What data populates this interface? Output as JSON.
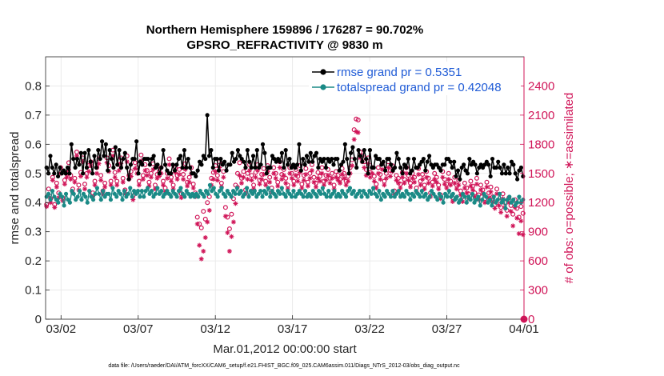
{
  "chart_data": {
    "type": "line",
    "title": "Northern Hemisphere 159896 / 176287 = 90.702%",
    "subtitle": "GPSRO_REFRACTIVITY @ 9830 m",
    "xlabel": "Mar.01,2012 00:00:00 start",
    "ylabel": "rmse and totalspread",
    "ylabel_right": "# of obs: o=possible; ∗=assimilated",
    "footnote": "data file: /Users/raeder/DAI/ATM_forcXX/CAM6_setup/f.e21.FHIST_BGC.f09_025.CAM6assim.011/Diags_NTrS_2012-03/obs_diag_output.nc",
    "xlim": [
      0.5,
      31.5
    ],
    "ylim": [
      0,
      0.9
    ],
    "ylim_right": [
      0,
      2700
    ],
    "x_ticks": [
      1.5,
      6.5,
      11.5,
      16.5,
      21.5,
      26.5,
      31.5
    ],
    "x_tick_labels": [
      "03/02",
      "03/07",
      "03/12",
      "03/17",
      "03/22",
      "03/27",
      "04/01"
    ],
    "y_ticks": [
      0,
      0.1,
      0.2,
      0.3,
      0.4,
      0.5,
      0.6,
      0.7,
      0.8
    ],
    "y_tick_labels": [
      "0",
      "0.1",
      "0.2",
      "0.3",
      "0.4",
      "0.5",
      "0.6",
      "0.7",
      "0.8"
    ],
    "y_ticks_right": [
      0,
      300,
      600,
      900,
      1200,
      1500,
      1800,
      2100,
      2400
    ],
    "y_tick_labels_right": [
      "0",
      "300",
      "600",
      "900",
      "1200",
      "1500",
      "1800",
      "2100",
      "2400"
    ],
    "grid": true,
    "legend_position": "top-right",
    "series": [
      {
        "name": "rmse grand pr = 0.5351",
        "color": "#000000",
        "axis": "left",
        "values": [
          0.52,
          0.5,
          0.56,
          0.52,
          0.5,
          0.53,
          0.49,
          0.52,
          0.5,
          0.51,
          0.5,
          0.52,
          0.5,
          0.6,
          0.55,
          0.52,
          0.55,
          0.53,
          0.57,
          0.5,
          0.57,
          0.52,
          0.58,
          0.54,
          0.5,
          0.56,
          0.52,
          0.58,
          0.55,
          0.61,
          0.56,
          0.6,
          0.51,
          0.58,
          0.55,
          0.52,
          0.59,
          0.53,
          0.58,
          0.52,
          0.55,
          0.57,
          0.52,
          0.48,
          0.53,
          0.55,
          0.55,
          0.61,
          0.5,
          0.54,
          0.53,
          0.55,
          0.55,
          0.55,
          0.53,
          0.55,
          0.56,
          0.52,
          0.53,
          0.5,
          0.52,
          0.58,
          0.53,
          0.51,
          0.5,
          0.5,
          0.53,
          0.51,
          0.53,
          0.55,
          0.56,
          0.52,
          0.58,
          0.52,
          0.55,
          0.52,
          0.5,
          0.5,
          0.49,
          0.51,
          0.54,
          0.53,
          0.56,
          0.55,
          0.7,
          0.56,
          0.58,
          0.52,
          0.55,
          0.55,
          0.51,
          0.55,
          0.53,
          0.54,
          0.51,
          0.53,
          0.53,
          0.57,
          0.54,
          0.55,
          0.58,
          0.56,
          0.55,
          0.54,
          0.52,
          0.58,
          0.54,
          0.52,
          0.56,
          0.52,
          0.58,
          0.52,
          0.53,
          0.6,
          0.57,
          0.5,
          0.52,
          0.52,
          0.56,
          0.55,
          0.54,
          0.55,
          0.54,
          0.57,
          0.52,
          0.58,
          0.53,
          0.55,
          0.52,
          0.53,
          0.52,
          0.53,
          0.6,
          0.51,
          0.55,
          0.53,
          0.56,
          0.54,
          0.57,
          0.54,
          0.56,
          0.57,
          0.52,
          0.55,
          0.54,
          0.55,
          0.52,
          0.55,
          0.54,
          0.55,
          0.53,
          0.55,
          0.55,
          0.51,
          0.53,
          0.54,
          0.6,
          0.55,
          0.5,
          0.57,
          0.59,
          0.55,
          0.52,
          0.58,
          0.56,
          0.54,
          0.58,
          0.55,
          0.5,
          0.58,
          0.52,
          0.52,
          0.56,
          0.55,
          0.55,
          0.53,
          0.54,
          0.51,
          0.55,
          0.55,
          0.53,
          0.51,
          0.52,
          0.57,
          0.55,
          0.52,
          0.5,
          0.53,
          0.52,
          0.55,
          0.5,
          0.51,
          0.55,
          0.52,
          0.52,
          0.53,
          0.54,
          0.55,
          0.51,
          0.54,
          0.56,
          0.53,
          0.52,
          0.53,
          0.53,
          0.52,
          0.51,
          0.53,
          0.53,
          0.55,
          0.55,
          0.54,
          0.52,
          0.54,
          0.49,
          0.51,
          0.48,
          0.52,
          0.53,
          0.51,
          0.5,
          0.55,
          0.53,
          0.54,
          0.53,
          0.5,
          0.52,
          0.53,
          0.52,
          0.53,
          0.54,
          0.53,
          0.49,
          0.55,
          0.52,
          0.52,
          0.54,
          0.52,
          0.5,
          0.53,
          0.5,
          0.52,
          0.5,
          0.54,
          0.53,
          0.5,
          0.48,
          0.51,
          0.52,
          0.49
        ]
      },
      {
        "name": "totalspread grand pr = 0.42048",
        "color": "#1a8a86",
        "axis": "left",
        "values": [
          0.42,
          0.43,
          0.41,
          0.44,
          0.42,
          0.41,
          0.4,
          0.43,
          0.42,
          0.39,
          0.43,
          0.41,
          0.4,
          0.44,
          0.43,
          0.41,
          0.42,
          0.44,
          0.41,
          0.43,
          0.42,
          0.4,
          0.44,
          0.42,
          0.41,
          0.43,
          0.45,
          0.43,
          0.41,
          0.44,
          0.42,
          0.43,
          0.43,
          0.41,
          0.45,
          0.43,
          0.42,
          0.44,
          0.43,
          0.41,
          0.44,
          0.42,
          0.43,
          0.45,
          0.42,
          0.44,
          0.43,
          0.44,
          0.42,
          0.44,
          0.42,
          0.44,
          0.45,
          0.43,
          0.44,
          0.42,
          0.43,
          0.45,
          0.43,
          0.44,
          0.42,
          0.43,
          0.44,
          0.43,
          0.42,
          0.44,
          0.43,
          0.42,
          0.44,
          0.45,
          0.43,
          0.42,
          0.44,
          0.43,
          0.42,
          0.43,
          0.42,
          0.43,
          0.42,
          0.44,
          0.43,
          0.42,
          0.44,
          0.43,
          0.46,
          0.44,
          0.45,
          0.43,
          0.42,
          0.44,
          0.45,
          0.43,
          0.42,
          0.44,
          0.43,
          0.42,
          0.44,
          0.43,
          0.45,
          0.43,
          0.44,
          0.42,
          0.43,
          0.45,
          0.42,
          0.44,
          0.43,
          0.44,
          0.42,
          0.43,
          0.44,
          0.42,
          0.44,
          0.43,
          0.45,
          0.42,
          0.44,
          0.43,
          0.42,
          0.44,
          0.43,
          0.45,
          0.43,
          0.42,
          0.44,
          0.43,
          0.42,
          0.44,
          0.42,
          0.43,
          0.44,
          0.43,
          0.42,
          0.44,
          0.42,
          0.43,
          0.42,
          0.44,
          0.43,
          0.42,
          0.44,
          0.43,
          0.45,
          0.43,
          0.42,
          0.44,
          0.42,
          0.43,
          0.44,
          0.42,
          0.43,
          0.42,
          0.44,
          0.43,
          0.42,
          0.44,
          0.45,
          0.43,
          0.44,
          0.42,
          0.43,
          0.44,
          0.42,
          0.44,
          0.43,
          0.42,
          0.44,
          0.43,
          0.45,
          0.43,
          0.42,
          0.44,
          0.41,
          0.43,
          0.42,
          0.44,
          0.43,
          0.42,
          0.44,
          0.42,
          0.43,
          0.44,
          0.42,
          0.43,
          0.42,
          0.44,
          0.43,
          0.41,
          0.43,
          0.42,
          0.44,
          0.43,
          0.42,
          0.44,
          0.42,
          0.43,
          0.41,
          0.42,
          0.44,
          0.43,
          0.42,
          0.41,
          0.43,
          0.42,
          0.4,
          0.43,
          0.42,
          0.44,
          0.42,
          0.43,
          0.41,
          0.42,
          0.4,
          0.41,
          0.43,
          0.42,
          0.4,
          0.42,
          0.41,
          0.43,
          0.4,
          0.41,
          0.42,
          0.39,
          0.41,
          0.43,
          0.42,
          0.4,
          0.41,
          0.39,
          0.42,
          0.4,
          0.41,
          0.43,
          0.4,
          0.41,
          0.38,
          0.41,
          0.42,
          0.4,
          0.41,
          0.39,
          0.4,
          0.42,
          0.4,
          0.41
        ]
      },
      {
        "name": "possible",
        "marker": "circle",
        "color": "#d01558",
        "axis": "right",
        "values": [
          1180,
          1340,
          1240,
          1460,
          1180,
          1400,
          1300,
          1560,
          1250,
          1430,
          1500,
          1610,
          1480,
          1340,
          1450,
          1720,
          1380,
          1510,
          1660,
          1390,
          1500,
          1580,
          1620,
          1300,
          1420,
          1560,
          1650,
          1480,
          1320,
          1400,
          1660,
          1580,
          1420,
          1740,
          1510,
          1420,
          1590,
          1660,
          1450,
          1330,
          1680,
          1480,
          1520,
          1270,
          1610,
          1560,
          1420,
          1690,
          1480,
          1590,
          1530,
          1410,
          1500,
          1600,
          1380,
          1490,
          1520,
          1560,
          1420,
          1350,
          1500,
          1650,
          1460,
          1380,
          1560,
          1480,
          1540,
          1290,
          1490,
          1600,
          1410,
          1460,
          1560,
          1390,
          1300,
          1050,
          980,
          940,
          1110,
          1030,
          1200,
          1260,
          1450,
          1510,
          1580,
          1480,
          1620,
          1400,
          1520,
          1150,
          1050,
          930,
          1080,
          1240,
          1380,
          1500,
          1610,
          1450,
          1520,
          1330,
          1500,
          1590,
          1480,
          1380,
          1510,
          1590,
          1430,
          1490,
          1550,
          1420,
          1580,
          1460,
          1350,
          1560,
          1500,
          1410,
          1620,
          1490,
          1540,
          1450,
          1380,
          1560,
          1500,
          1420,
          1540,
          1470,
          1580,
          1390,
          1480,
          1550,
          1410,
          1500,
          1590,
          1460,
          1400,
          1510,
          1470,
          1560,
          1420,
          1480,
          1540,
          1450,
          1500,
          1380,
          1520,
          1480,
          1440,
          1550,
          1500,
          1420,
          1470,
          1560,
          1640,
          1950,
          2060,
          2050,
          1720,
          1680,
          1620,
          1540,
          1660,
          1510,
          1560,
          1470,
          1390,
          1560,
          1490,
          1600,
          1420,
          1500,
          1620,
          1530,
          1580,
          1320,
          1480,
          1450,
          1390,
          1510,
          1440,
          1560,
          1480,
          1400,
          1500,
          1460,
          1350,
          1550,
          1420,
          1490,
          1380,
          1520,
          1450,
          1300,
          1410,
          1500,
          1460,
          1380,
          1280,
          1520,
          1440,
          1390,
          1500,
          1420,
          1250,
          1460,
          1380,
          1430,
          1320,
          1260,
          1400,
          1350,
          1290,
          1420,
          1370,
          1300,
          1450,
          1280,
          1380,
          1330,
          1240,
          1410,
          1300,
          1360,
          1260,
          1180,
          1340,
          1220,
          1150,
          1290,
          1200,
          1120,
          1250,
          1170,
          1080,
          1230,
          1140,
          1050,
          1160,
          1090
        ]
      },
      {
        "name": "assimilated",
        "marker": "asterisk",
        "color": "#d01558",
        "axis": "right",
        "values": [
          1160,
          1280,
          1200,
          1430,
          1150,
          1360,
          1250,
          1500,
          1220,
          1390,
          1460,
          1540,
          1440,
          1300,
          1410,
          1680,
          1330,
          1470,
          1620,
          1340,
          1460,
          1520,
          1580,
          1260,
          1380,
          1500,
          1600,
          1430,
          1290,
          1360,
          1610,
          1520,
          1380,
          1680,
          1460,
          1380,
          1530,
          1600,
          1410,
          1290,
          1620,
          1440,
          1470,
          1230,
          1550,
          1500,
          1380,
          1630,
          1440,
          1530,
          1480,
          1370,
          1460,
          1540,
          1340,
          1450,
          1470,
          1500,
          1380,
          1310,
          1450,
          1590,
          1420,
          1340,
          1510,
          1440,
          1490,
          1250,
          1440,
          1540,
          1370,
          1410,
          1500,
          1350,
          1260,
          980,
          760,
          620,
          700,
          840,
          1000,
          1120,
          1380,
          1440,
          1520,
          1430,
          1560,
          1360,
          1460,
          1060,
          890,
          700,
          850,
          1000,
          1190,
          1360,
          1480,
          1400,
          1460,
          1290,
          1440,
          1530,
          1430,
          1340,
          1460,
          1530,
          1390,
          1440,
          1490,
          1380,
          1520,
          1410,
          1310,
          1500,
          1450,
          1370,
          1560,
          1440,
          1480,
          1400,
          1340,
          1500,
          1450,
          1380,
          1480,
          1420,
          1510,
          1350,
          1430,
          1490,
          1370,
          1450,
          1530,
          1410,
          1360,
          1450,
          1420,
          1500,
          1380,
          1430,
          1480,
          1400,
          1450,
          1340,
          1460,
          1430,
          1400,
          1490,
          1450,
          1380,
          1420,
          1500,
          1580,
          1850,
          1930,
          1920,
          1660,
          1620,
          1560,
          1480,
          1600,
          1460,
          1500,
          1420,
          1350,
          1500,
          1440,
          1540,
          1380,
          1450,
          1560,
          1470,
          1520,
          1280,
          1430,
          1400,
          1350,
          1460,
          1400,
          1500,
          1430,
          1360,
          1450,
          1410,
          1310,
          1490,
          1380,
          1440,
          1340,
          1460,
          1400,
          1260,
          1370,
          1440,
          1410,
          1340,
          1240,
          1460,
          1390,
          1350,
          1440,
          1380,
          1210,
          1400,
          1340,
          1380,
          1280,
          1210,
          1350,
          1300,
          1240,
          1370,
          1330,
          1260,
          1390,
          1230,
          1330,
          1290,
          1200,
          1360,
          1250,
          1310,
          1210,
          1140,
          1290,
          1170,
          1100,
          1240,
          1150,
          1060,
          1200,
          1110,
          960,
          1150,
          1040,
          880,
          1010,
          870
        ]
      }
    ]
  }
}
